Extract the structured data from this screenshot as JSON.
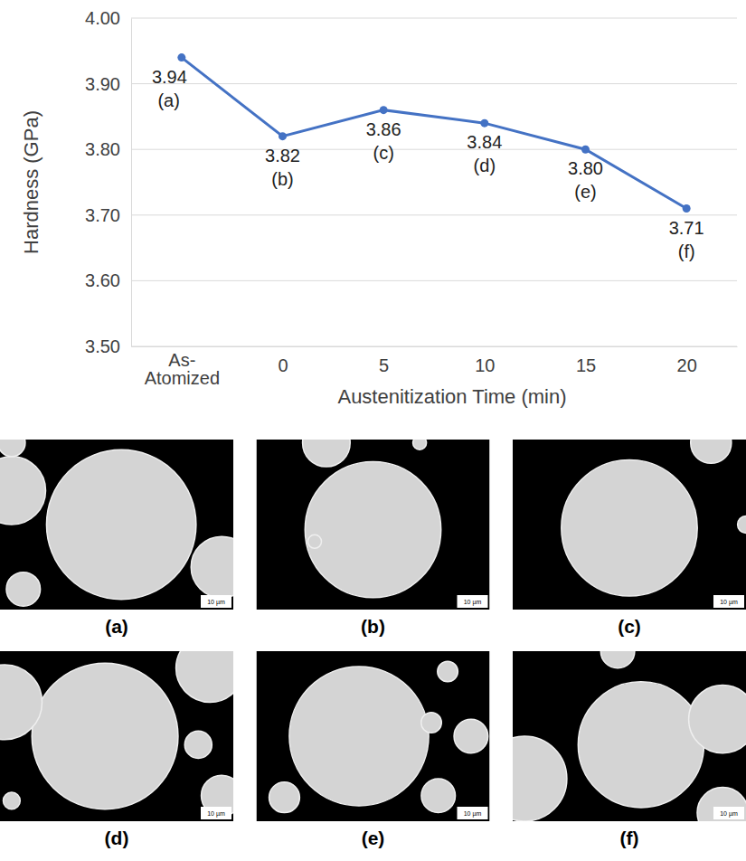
{
  "chart_data": {
    "type": "line",
    "y_label": "Hardness (GPa)",
    "x_label": "Austenitization Time (min)",
    "categories": [
      "As-Atomized",
      "0",
      "5",
      "10",
      "15",
      "20"
    ],
    "values": [
      3.94,
      3.82,
      3.86,
      3.84,
      3.8,
      3.71
    ],
    "value_labels": [
      "3.94",
      "3.82",
      "3.86",
      "3.84",
      "3.80",
      "3.71"
    ],
    "annotations": [
      "(a)",
      "(b)",
      "(c)",
      "(d)",
      "(e)",
      "(f)"
    ],
    "color": "#4472c4",
    "marker": "circle",
    "ylim": [
      3.5,
      4.0
    ],
    "yticks": [
      {
        "value": 3.5,
        "label": "3.50"
      },
      {
        "value": 3.6,
        "label": "3.60"
      },
      {
        "value": 3.7,
        "label": "3.70"
      },
      {
        "value": 3.8,
        "label": "3.80"
      },
      {
        "value": 3.9,
        "label": "3.90"
      },
      {
        "value": 4.0,
        "label": "4.00"
      }
    ],
    "grid": true,
    "data_labels": true
  },
  "panels": {
    "labels": [
      "(a)",
      "(b)",
      "(c)",
      "(d)",
      "(e)",
      "(f)"
    ],
    "scale_bar": "10 µm"
  }
}
